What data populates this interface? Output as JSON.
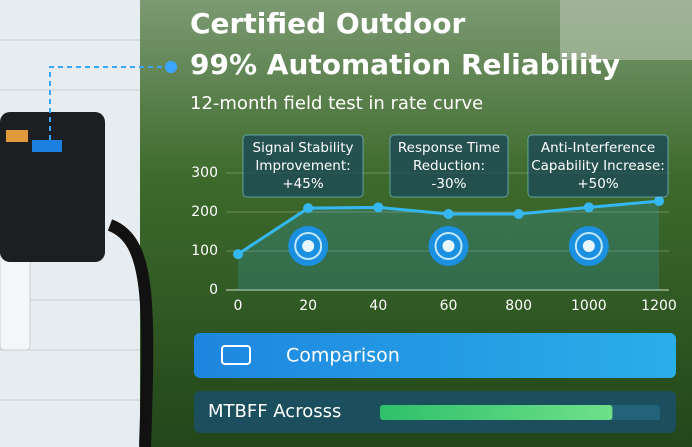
{
  "chart_data": {
    "type": "line",
    "title_lines": [
      "Certified Outdoor",
      "99% Automation Reliability"
    ],
    "subtitle": "12-month field test in rate curve",
    "categories": [
      "0",
      "20",
      "40",
      "60",
      "800",
      "1000",
      "1200"
    ],
    "series": [
      {
        "color": "#35b8f2",
        "values": [
          92,
          210,
          212,
          195,
          195,
          212,
          228
        ]
      }
    ],
    "ylim": [
      0,
      300
    ],
    "yticks": [
      0,
      100,
      200,
      300
    ],
    "grid": true,
    "annotations": [
      {
        "lines": [
          "Signal Stability",
          "Improvement:",
          "+45%"
        ]
      },
      {
        "lines": [
          "Response Time",
          "Reduction:",
          "-30%"
        ]
      },
      {
        "lines": [
          "Anti-Interference",
          "Capability Increase:",
          "+50%"
        ]
      }
    ]
  },
  "panels": {
    "comparison": "Comparison",
    "mtbff": {
      "label": "MTBFF Acrosss",
      "progress": 83
    }
  }
}
